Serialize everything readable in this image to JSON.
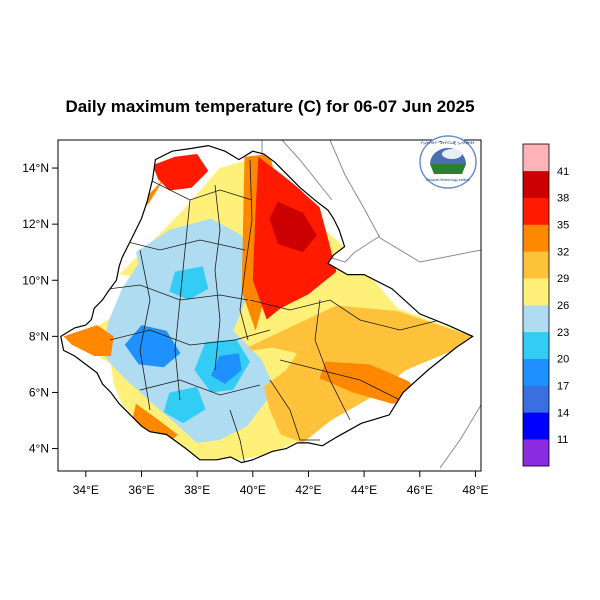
{
  "title": "Daily maximum temperature (C) for 06-07 Jun 2025",
  "logo": {
    "arc_text": "የኢትዮጵያ ሜትዮሮሎጂ ኢንስቲትዩት",
    "sub_text": "Ethiopian Meteorology Institute",
    "sky_color": "#4a6fb5",
    "ground_color": "#2e7d32"
  },
  "map": {
    "x_range": [
      33,
      48.2
    ],
    "y_range": [
      3.2,
      15
    ],
    "x_ticks": [
      {
        "value": 34,
        "label": "34°E"
      },
      {
        "value": 36,
        "label": "36°E"
      },
      {
        "value": 38,
        "label": "38°E"
      },
      {
        "value": 40,
        "label": "40°E"
      },
      {
        "value": 42,
        "label": "42°E"
      },
      {
        "value": 44,
        "label": "44°E"
      },
      {
        "value": 46,
        "label": "46°E"
      },
      {
        "value": 48,
        "label": "48°E"
      }
    ],
    "y_ticks": [
      {
        "value": 14,
        "label": "14°N"
      },
      {
        "value": 12,
        "label": "12°N"
      },
      {
        "value": 10,
        "label": "10°N"
      },
      {
        "value": 8,
        "label": "8°N"
      },
      {
        "value": 6,
        "label": "6°N"
      },
      {
        "value": 4,
        "label": "4°N"
      }
    ]
  },
  "colorbar": {
    "bins": [
      {
        "color": "#8b2be2"
      },
      {
        "color": "#0000ff"
      },
      {
        "color": "#3a6fe0"
      },
      {
        "color": "#1e90ff"
      },
      {
        "color": "#33ccf5"
      },
      {
        "color": "#b0dcf2"
      },
      {
        "color": "#fff07a"
      },
      {
        "color": "#ffc23a"
      },
      {
        "color": "#ff8800"
      },
      {
        "color": "#ff1a00"
      },
      {
        "color": "#cc0000"
      },
      {
        "color": "#ffb3b8"
      }
    ],
    "labels": [
      "11",
      "14",
      "17",
      "20",
      "23",
      "26",
      "29",
      "32",
      "35",
      "38",
      "41"
    ]
  },
  "regions": [
    {
      "color": "#fff07a",
      "lon": [
        35.2,
        36.3,
        37.5,
        38.8,
        40.2,
        40.8,
        41.8,
        43.5,
        45.2,
        47.9,
        47.2,
        45.5,
        44.2,
        42.8,
        41.5,
        40.6,
        39.5,
        38.2,
        37.1,
        36.0,
        35.3,
        35.0,
        34.9,
        34.3,
        33.5,
        33.2,
        34.3,
        34.8,
        35.2,
        35.3,
        36.0,
        36.6
      ],
      "lat": [
        10.2,
        11.3,
        12.5,
        14.0,
        14.4,
        13.8,
        12.5,
        11.0,
        9.0,
        8.0,
        7.5,
        6.8,
        5.8,
        5.0,
        4.2,
        3.8,
        3.6,
        3.5,
        4.0,
        4.8,
        5.6,
        6.3,
        7.0,
        7.4,
        7.8,
        8.0,
        8.3,
        8.6,
        9.0,
        9.6,
        9.9,
        10.0
      ]
    },
    {
      "color": "#b0dcf2",
      "lon": [
        35.8,
        37.0,
        38.5,
        39.6,
        40.0,
        39.8,
        39.3,
        40.3,
        40.8,
        39.8,
        38.8,
        38.0,
        37.2,
        36.3,
        35.5,
        35.0,
        34.6,
        34.8,
        35.3,
        35.9
      ],
      "lat": [
        11.0,
        11.8,
        12.2,
        11.6,
        10.6,
        9.4,
        8.2,
        7.2,
        6.1,
        4.8,
        4.3,
        4.2,
        4.9,
        5.7,
        6.4,
        6.9,
        7.4,
        8.5,
        9.7,
        10.6
      ]
    },
    {
      "color": "#1e90ff",
      "lon": [
        36.0,
        36.9,
        37.4,
        36.8,
        35.9,
        35.4
      ],
      "lat": [
        8.4,
        8.2,
        7.4,
        6.9,
        7.0,
        7.7
      ]
    },
    {
      "color": "#33ccf5",
      "lon": [
        38.3,
        39.4,
        39.9,
        39.3,
        38.5,
        37.9
      ],
      "lat": [
        7.8,
        7.9,
        7.1,
        6.1,
        6.0,
        6.8
      ]
    },
    {
      "color": "#1e90ff",
      "lon": [
        38.8,
        39.5,
        39.6,
        39.0,
        38.5
      ],
      "lat": [
        7.3,
        7.4,
        6.8,
        6.3,
        6.6
      ]
    },
    {
      "color": "#33ccf5",
      "lon": [
        37.2,
        38.2,
        38.4,
        37.7,
        37.0
      ],
      "lat": [
        10.3,
        10.5,
        9.7,
        9.3,
        9.6
      ]
    },
    {
      "color": "#33ccf5",
      "lon": [
        37.0,
        38.0,
        38.3,
        37.5,
        36.8
      ],
      "lat": [
        6.0,
        6.2,
        5.4,
        4.9,
        5.3
      ]
    },
    {
      "color": "#ffc23a",
      "lon": [
        39.8,
        41.5,
        43.0,
        45.2,
        47.9,
        47.2,
        45.5,
        44.2,
        42.8,
        41.8,
        41.0,
        40.6,
        40.4,
        41.2,
        41.6,
        40.7,
        40.0
      ],
      "lat": [
        7.6,
        8.4,
        9.1,
        8.9,
        8.0,
        7.5,
        6.8,
        5.8,
        5.0,
        4.2,
        4.5,
        5.4,
        6.2,
        6.8,
        7.4,
        7.6,
        7.5
      ]
    },
    {
      "color": "#ff8800",
      "lon": [
        42.6,
        44.2,
        45.6,
        46.3,
        45.0,
        43.6,
        42.4
      ],
      "lat": [
        7.1,
        7.0,
        6.4,
        5.7,
        5.6,
        6.0,
        6.5
      ]
    },
    {
      "color": "#ff8800",
      "lon": [
        33.2,
        34.4,
        35.0,
        34.9,
        34.3,
        33.5
      ],
      "lat": [
        8.0,
        8.4,
        8.0,
        7.3,
        7.3,
        7.7
      ]
    },
    {
      "color": "#ff8800",
      "lon": [
        35.8,
        36.5,
        37.3,
        36.8,
        35.6
      ],
      "lat": [
        5.6,
        5.1,
        4.5,
        4.0,
        4.7
      ]
    },
    {
      "color": "#ff8800",
      "lon": [
        34.3,
        35.0,
        35.5,
        36.8,
        36.3,
        35.2,
        34.6
      ],
      "lat": [
        10.4,
        11.3,
        12.3,
        13.6,
        12.8,
        11.5,
        10.2
      ]
    },
    {
      "color": "#ff1a00",
      "lon": [
        36.4,
        37.2,
        38.0,
        38.4,
        37.8,
        37.0,
        36.6
      ],
      "lat": [
        14.1,
        14.4,
        14.5,
        13.9,
        13.3,
        13.2,
        13.6
      ]
    },
    {
      "color": "#ff8800",
      "lon": [
        39.7,
        40.6,
        41.0,
        40.6,
        40.1,
        39.6
      ],
      "lat": [
        14.4,
        14.5,
        13.0,
        10.0,
        8.2,
        9.6
      ]
    },
    {
      "color": "#ff1a00",
      "lon": [
        40.2,
        41.5,
        42.4,
        42.7,
        43.0,
        42.0,
        41.0,
        40.5,
        40.0,
        40.1
      ],
      "lat": [
        14.4,
        13.4,
        12.6,
        11.5,
        10.3,
        9.5,
        9.0,
        8.6,
        10.0,
        12.5
      ]
    },
    {
      "color": "#cc0000",
      "lon": [
        40.9,
        41.8,
        42.3,
        41.8,
        40.9,
        40.6
      ],
      "lat": [
        12.8,
        12.4,
        11.6,
        11.0,
        11.3,
        12.2
      ]
    }
  ]
}
